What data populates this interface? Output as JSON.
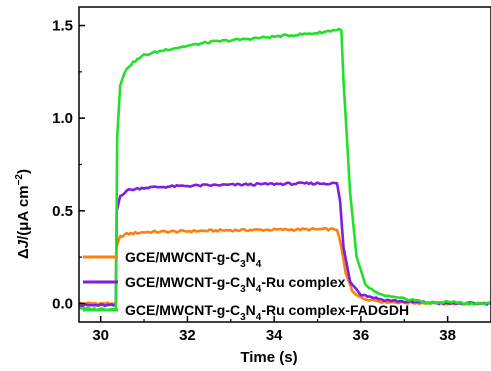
{
  "chart_data": {
    "type": "line",
    "xlabel": "Time (s)",
    "ylabel": {
      "delta": "Δ",
      "J": "J",
      "rest": "/(μA cm",
      "sup": "−2",
      "close": ")"
    },
    "xlim": [
      29.5,
      39
    ],
    "ylim": [
      -0.1,
      1.6
    ],
    "xticks": [
      30,
      32,
      34,
      36,
      38
    ],
    "yticks": [
      0.0,
      0.5,
      1.0,
      1.5
    ],
    "ytick_labels": [
      "0.0",
      "0.5",
      "1.0",
      "1.5"
    ],
    "legend_position": "bottom-left",
    "series": [
      {
        "name": {
          "a": "GCE/MWCNT-g-C",
          "s1": "3",
          "b": "N",
          "s2": "4",
          "c": ""
        },
        "color": "#ff7f0e",
        "points": [
          [
            29.5,
            0.0
          ],
          [
            30.35,
            0.0
          ],
          [
            30.36,
            0.3
          ],
          [
            30.45,
            0.36
          ],
          [
            30.6,
            0.375
          ],
          [
            31.0,
            0.385
          ],
          [
            32.0,
            0.39
          ],
          [
            33.0,
            0.395
          ],
          [
            34.0,
            0.398
          ],
          [
            35.0,
            0.4
          ],
          [
            35.45,
            0.4
          ],
          [
            35.55,
            0.3
          ],
          [
            35.65,
            0.16
          ],
          [
            35.8,
            0.07
          ],
          [
            36.0,
            0.03
          ],
          [
            36.5,
            0.01
          ],
          [
            37.0,
            0.005
          ],
          [
            38.0,
            0.0
          ],
          [
            39.0,
            0.0
          ]
        ]
      },
      {
        "name": {
          "a": "GCE/MWCNT-g-C",
          "s1": "3",
          "b": "N",
          "s2": "4",
          "c": "-Ru complex"
        },
        "color": "#7b1fe0",
        "points": [
          [
            29.5,
            -0.01
          ],
          [
            30.35,
            -0.01
          ],
          [
            30.37,
            0.5
          ],
          [
            30.45,
            0.58
          ],
          [
            30.6,
            0.61
          ],
          [
            31.0,
            0.625
          ],
          [
            32.0,
            0.635
          ],
          [
            33.0,
            0.64
          ],
          [
            34.0,
            0.645
          ],
          [
            35.0,
            0.648
          ],
          [
            35.45,
            0.648
          ],
          [
            35.52,
            0.55
          ],
          [
            35.6,
            0.3
          ],
          [
            35.75,
            0.12
          ],
          [
            36.0,
            0.05
          ],
          [
            36.5,
            0.02
          ],
          [
            37.0,
            0.01
          ],
          [
            38.0,
            0.0
          ],
          [
            39.0,
            0.0
          ]
        ]
      },
      {
        "name": {
          "a": "GCE/MWCNT-g-C",
          "s1": "3",
          "b": "N",
          "s2": "4",
          "c": "-Ru complex-FADGDH"
        },
        "color": "#22e02a",
        "points": [
          [
            29.5,
            -0.02
          ],
          [
            29.6,
            -0.03
          ],
          [
            30.35,
            -0.03
          ],
          [
            30.38,
            0.9
          ],
          [
            30.45,
            1.18
          ],
          [
            30.6,
            1.27
          ],
          [
            30.8,
            1.31
          ],
          [
            31.0,
            1.34
          ],
          [
            31.5,
            1.37
          ],
          [
            32.0,
            1.39
          ],
          [
            32.5,
            1.41
          ],
          [
            33.0,
            1.42
          ],
          [
            34.0,
            1.44
          ],
          [
            35.0,
            1.46
          ],
          [
            35.5,
            1.48
          ],
          [
            35.55,
            1.47
          ],
          [
            35.6,
            1.2
          ],
          [
            35.75,
            0.6
          ],
          [
            35.9,
            0.25
          ],
          [
            36.1,
            0.1
          ],
          [
            36.4,
            0.05
          ],
          [
            36.8,
            0.03
          ],
          [
            37.2,
            0.02
          ],
          [
            37.6,
            0.0
          ],
          [
            38.0,
            0.01
          ],
          [
            38.5,
            0.0
          ],
          [
            39.0,
            0.0
          ]
        ]
      }
    ]
  }
}
